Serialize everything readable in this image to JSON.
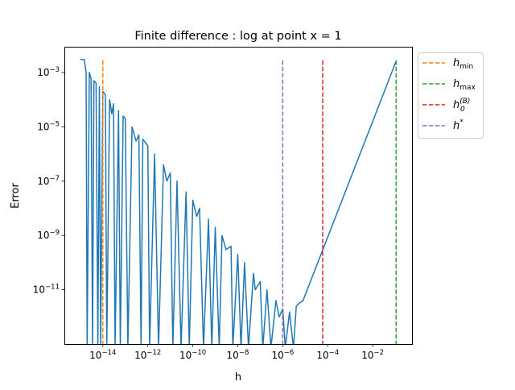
{
  "chart_data": {
    "type": "line",
    "title": "Finite difference : log at point x = 1",
    "xlabel": "h",
    "ylabel": "Error",
    "xscale": "log",
    "yscale": "log",
    "xlim": [
      1.95e-16,
      0.56
    ],
    "ylim": [
      1e-13,
      0.0089
    ],
    "xticks": [
      {
        "value": 1e-14,
        "base": "10",
        "exp": "−14"
      },
      {
        "value": 1e-12,
        "base": "10",
        "exp": "−12"
      },
      {
        "value": 1e-10,
        "base": "10",
        "exp": "−10"
      },
      {
        "value": 1e-08,
        "base": "10",
        "exp": "−8"
      },
      {
        "value": 1e-06,
        "base": "10",
        "exp": "−6"
      },
      {
        "value": 0.0001,
        "base": "10",
        "exp": "−4"
      },
      {
        "value": 0.01,
        "base": "10",
        "exp": "−2"
      }
    ],
    "yticks": [
      {
        "value": 0.001,
        "base": "10",
        "exp": "−3"
      },
      {
        "value": 1e-05,
        "base": "10",
        "exp": "−5"
      },
      {
        "value": 1e-07,
        "base": "10",
        "exp": "−7"
      },
      {
        "value": 1e-09,
        "base": "10",
        "exp": "−9"
      },
      {
        "value": 1e-11,
        "base": "10",
        "exp": "−11"
      }
    ],
    "grid": false,
    "legend_placement": "outside-top-right",
    "series": [
      {
        "color": "#1f77b4",
        "points": [
          [
            1e-15,
            0.003
          ],
          [
            1.5e-15,
            0.003
          ],
          [
            1.8e-15,
            0.001
          ],
          [
            2e-15,
            0
          ],
          [
            2.5e-15,
            0.001
          ],
          [
            3e-15,
            0.0006
          ],
          [
            3.5e-15,
            0
          ],
          [
            4e-15,
            0.0005
          ],
          [
            5e-15,
            0.0004
          ],
          [
            6e-15,
            0
          ],
          [
            7e-15,
            0.0003
          ],
          [
            8e-15,
            0
          ],
          [
            1e-14,
            0.0002
          ],
          [
            1.3e-14,
            0.00015
          ],
          [
            1.5e-14,
            0
          ],
          [
            2e-14,
            0.0001
          ],
          [
            2.5e-14,
            3e-05
          ],
          [
            3e-14,
            7e-05
          ],
          [
            3.5e-14,
            0
          ],
          [
            5e-14,
            4e-05
          ],
          [
            6e-14,
            0
          ],
          [
            8e-14,
            2.5e-05
          ],
          [
            1e-13,
            2e-05
          ],
          [
            1.3e-13,
            0
          ],
          [
            2e-13,
            1e-05
          ],
          [
            3e-13,
            3e-06
          ],
          [
            4e-13,
            5e-06
          ],
          [
            5e-13,
            0
          ],
          [
            6e-13,
            3.5e-06
          ],
          [
            1e-12,
            2e-06
          ],
          [
            1.2e-12,
            0
          ],
          [
            2e-12,
            1e-06
          ],
          [
            3e-12,
            0
          ],
          [
            5e-12,
            4e-07
          ],
          [
            7e-12,
            1e-07
          ],
          [
            1e-11,
            2e-07
          ],
          [
            1.3e-11,
            0
          ],
          [
            2e-11,
            1e-07
          ],
          [
            3e-11,
            0
          ],
          [
            5e-11,
            4e-08
          ],
          [
            7e-11,
            0
          ],
          [
            1e-10,
            2e-08
          ],
          [
            1.5e-10,
            5e-09
          ],
          [
            2e-10,
            1e-08
          ],
          [
            3e-10,
            0
          ],
          [
            5e-10,
            4e-09
          ],
          [
            7e-10,
            0
          ],
          [
            1e-09,
            2e-09
          ],
          [
            1.5e-09,
            0
          ],
          [
            2e-09,
            1e-09
          ],
          [
            3e-09,
            3e-10
          ],
          [
            5e-09,
            4e-10
          ],
          [
            6e-09,
            0
          ],
          [
            1e-08,
            2e-10
          ],
          [
            1.4e-08,
            0
          ],
          [
            2e-08,
            1e-10
          ],
          [
            3e-08,
            0
          ],
          [
            5e-08,
            4e-11
          ],
          [
            6e-08,
            1e-11
          ],
          [
            1e-07,
            2e-11
          ],
          [
            1.3e-07,
            0
          ],
          [
            2e-07,
            1e-11
          ],
          [
            3e-07,
            0
          ],
          [
            5e-07,
            4e-12
          ],
          [
            7e-07,
            1e-12
          ],
          [
            1e-06,
            2e-12
          ],
          [
            1.3e-06,
            0
          ],
          [
            2e-06,
            1.5e-12
          ],
          [
            3e-06,
            0
          ],
          [
            4e-06,
            2.5e-12
          ],
          [
            5e-06,
            3e-12
          ],
          [
            8e-06,
            4e-12
          ],
          [
            0.11,
            0.0026
          ]
        ]
      }
    ],
    "vlines": [
      {
        "key": "hmin",
        "value": 1e-14,
        "color": "#ff7f0e",
        "label_main": "h",
        "label_sub": "min",
        "label_sup": ""
      },
      {
        "key": "hmax",
        "value": 0.11,
        "color": "#2ca02c",
        "label_main": "h",
        "label_sub": "max",
        "label_sup": ""
      },
      {
        "key": "h0B",
        "value": 6e-05,
        "color": "#d62728",
        "label_main": "h",
        "label_sub": "0",
        "label_sup": "(B)"
      },
      {
        "key": "hstar",
        "value": 1e-06,
        "color": "#9467bd",
        "label_main": "h",
        "label_sub": "",
        "label_sup": "*"
      }
    ]
  }
}
